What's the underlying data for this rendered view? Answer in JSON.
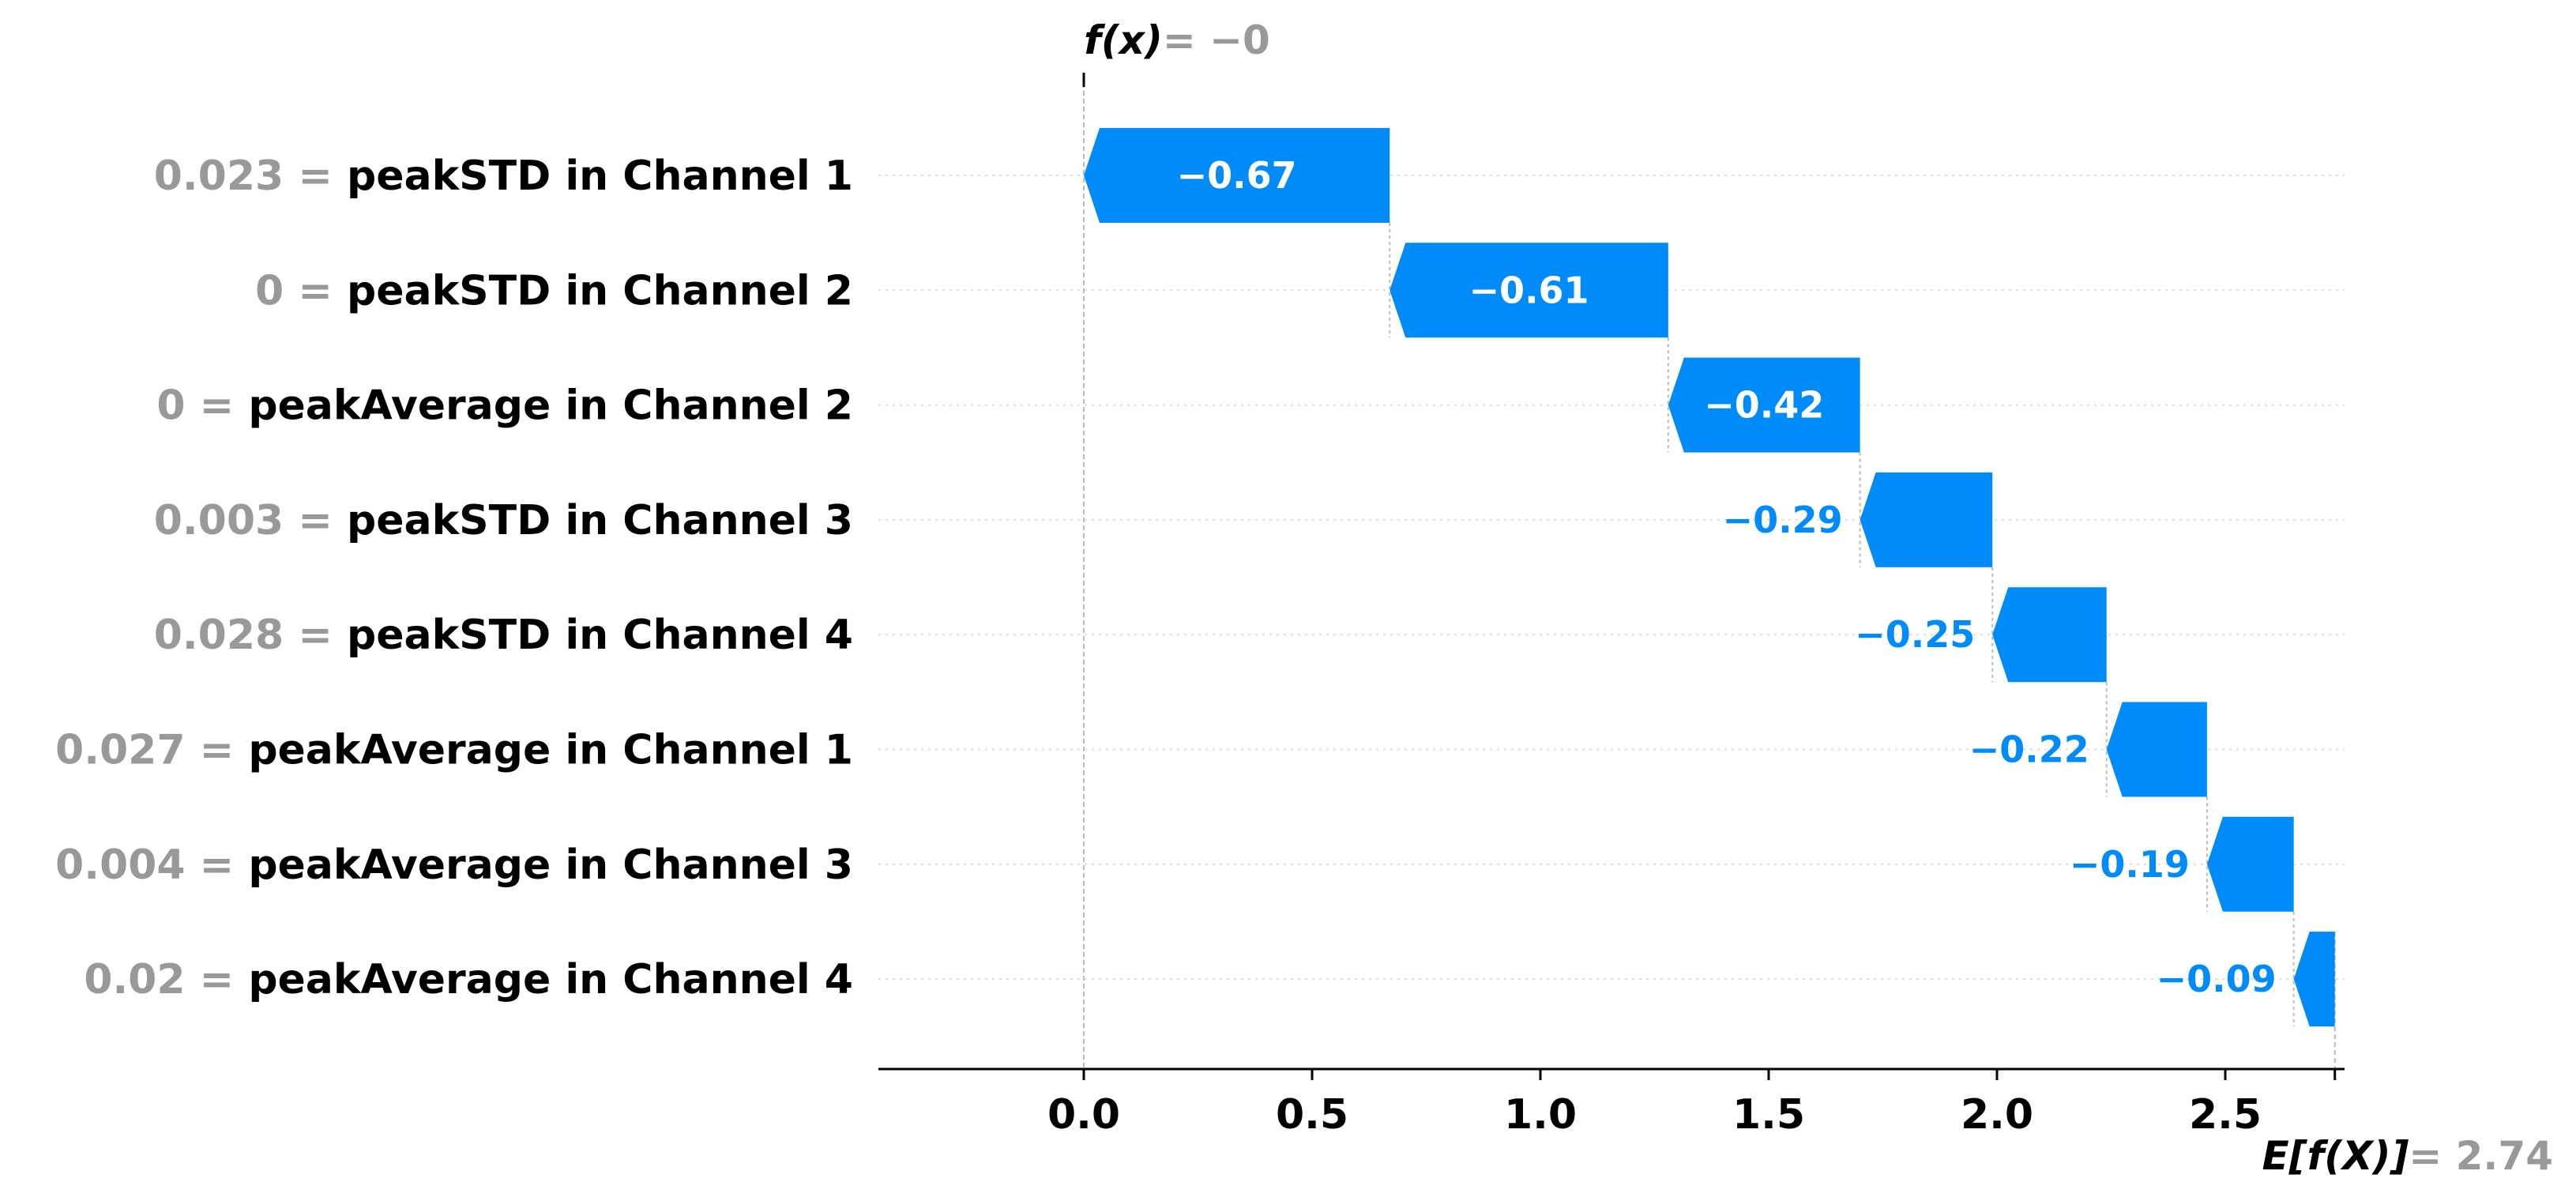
{
  "chart_data": {
    "type": "waterfall",
    "title": "",
    "xlabel": "",
    "ylabel": "",
    "xlim": [
      -0.45,
      2.77
    ],
    "x_ticks": [
      "0.0",
      "0.5",
      "1.0",
      "1.5",
      "2.0",
      "2.5"
    ],
    "x_tick_values": [
      0.0,
      0.5,
      1.0,
      1.5,
      2.0,
      2.5
    ],
    "grid": false,
    "colors": {
      "negative": "#008bfb",
      "label_value": "#999999",
      "label_feature": "#000000"
    },
    "f_x": {
      "label": "f(x)",
      "value_text": "= −0",
      "value": 0
    },
    "expected_value": {
      "label": "E[f(X)]",
      "value_text": "= 2.74",
      "value": 2.74
    },
    "features": [
      {
        "value_text": "0.023 =",
        "name": "peakSTD in Channel 1",
        "shap": -0.67,
        "shap_text": "−0.67"
      },
      {
        "value_text": "0 =",
        "name": "peakSTD in Channel 2",
        "shap": -0.61,
        "shap_text": "−0.61"
      },
      {
        "value_text": "0 =",
        "name": "peakAverage in Channel 2",
        "shap": -0.42,
        "shap_text": "−0.42"
      },
      {
        "value_text": "0.003 =",
        "name": "peakSTD in Channel 3",
        "shap": -0.29,
        "shap_text": "−0.29"
      },
      {
        "value_text": "0.028 =",
        "name": "peakSTD in Channel 4",
        "shap": -0.25,
        "shap_text": "−0.25"
      },
      {
        "value_text": "0.027 =",
        "name": "peakAverage in Channel 1",
        "shap": -0.22,
        "shap_text": "−0.22"
      },
      {
        "value_text": "0.004 =",
        "name": "peakAverage in Channel 3",
        "shap": -0.19,
        "shap_text": "−0.19"
      },
      {
        "value_text": "0.02 =",
        "name": "peakAverage in Channel 4",
        "shap": -0.09,
        "shap_text": "−0.09"
      }
    ]
  }
}
